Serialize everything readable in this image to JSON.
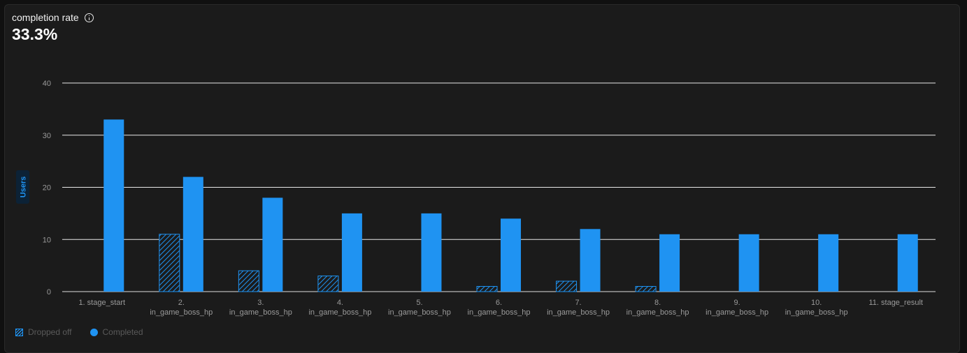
{
  "header": {
    "metric_label": "completion rate",
    "metric_value": "33.3%"
  },
  "legend": {
    "dropped_label": "Dropped off",
    "completed_label": "Completed"
  },
  "colors": {
    "completed": "#1f93f2",
    "dropped": "#1f93f2",
    "grid": "#ffffff",
    "axis_text": "#9a9a9a",
    "background": "#1b1b1b"
  },
  "chart_data": {
    "type": "bar",
    "title": "",
    "xlabel": "",
    "ylabel": "Users",
    "ylim": [
      0,
      40
    ],
    "yticks": [
      0,
      10,
      20,
      30,
      40
    ],
    "grid": true,
    "legend_position": "bottom-left",
    "categories": [
      [
        "1. stage_start"
      ],
      [
        "2.",
        "in_game_boss_hp"
      ],
      [
        "3.",
        "in_game_boss_hp"
      ],
      [
        "4.",
        "in_game_boss_hp"
      ],
      [
        "5.",
        "in_game_boss_hp"
      ],
      [
        "6.",
        "in_game_boss_hp"
      ],
      [
        "7.",
        "in_game_boss_hp"
      ],
      [
        "8.",
        "in_game_boss_hp"
      ],
      [
        "9.",
        "in_game_boss_hp"
      ],
      [
        "10.",
        "in_game_boss_hp"
      ],
      [
        "11. stage_result"
      ]
    ],
    "series": [
      {
        "name": "Dropped off",
        "values": [
          0,
          11,
          4,
          3,
          0,
          1,
          2,
          1,
          0,
          0,
          0
        ]
      },
      {
        "name": "Completed",
        "values": [
          33,
          22,
          18,
          15,
          15,
          14,
          12,
          11,
          11,
          11,
          11
        ]
      }
    ]
  }
}
